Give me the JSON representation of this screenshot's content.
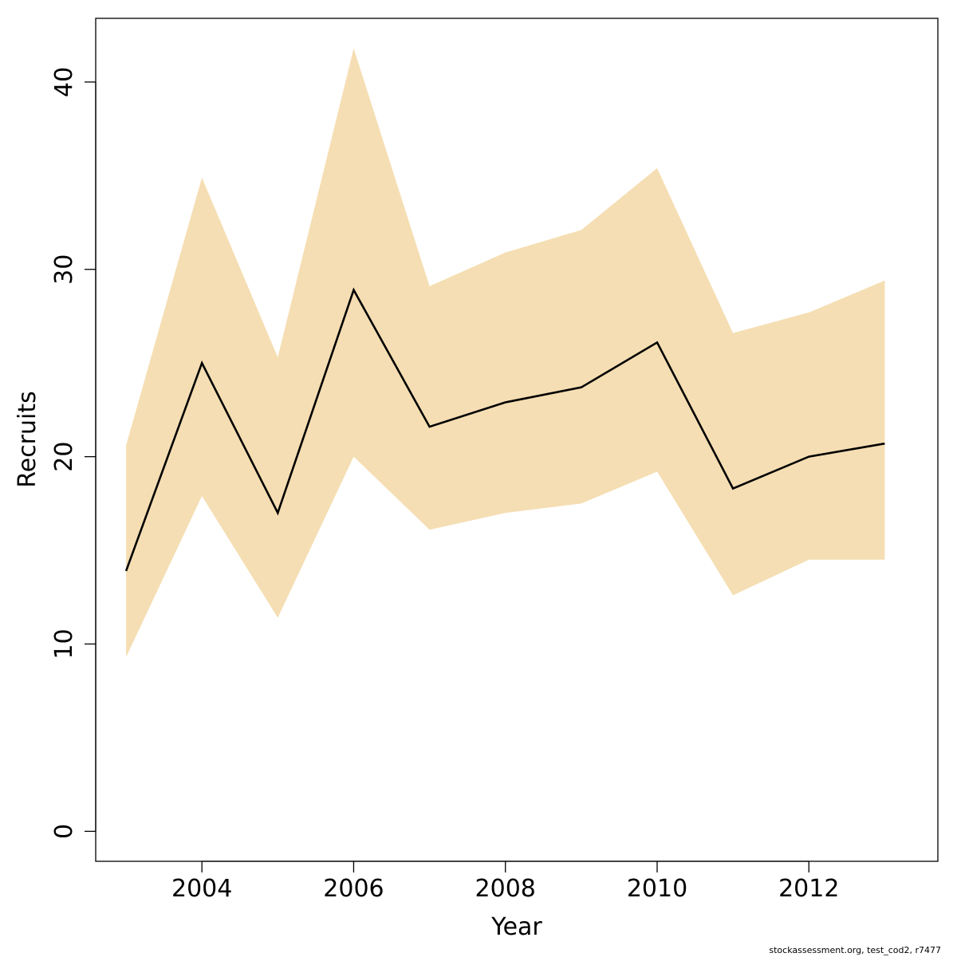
{
  "chart_data": {
    "type": "area",
    "title": "",
    "xlabel": "Year",
    "ylabel": "Recruits",
    "x": [
      2003,
      2004,
      2005,
      2006,
      2007,
      2008,
      2009,
      2010,
      2011,
      2012,
      2013
    ],
    "series": [
      {
        "values": [
          13.9,
          25.0,
          17.0,
          28.9,
          21.6,
          22.9,
          23.7,
          26.1,
          18.3,
          20.0,
          20.7
        ],
        "color": "#000000"
      }
    ],
    "band": {
      "lower": [
        9.3,
        17.9,
        11.4,
        20.0,
        16.1,
        17.0,
        17.5,
        19.2,
        12.6,
        14.5,
        14.5
      ],
      "upper": [
        20.6,
        34.9,
        25.3,
        41.8,
        29.1,
        30.9,
        32.1,
        35.4,
        26.6,
        27.7,
        29.4
      ],
      "color": "#f5deb3"
    },
    "xlim": [
      2002.6,
      2013.7
    ],
    "ylim": [
      -1.6,
      43.4
    ],
    "x_ticks": [
      "2004",
      "2006",
      "2008",
      "2010",
      "2012"
    ],
    "y_ticks": [
      "0",
      "10",
      "20",
      "30",
      "40"
    ],
    "grid": false,
    "legend": "none"
  },
  "footnote": "stockassessment.org, test_cod2, r7477"
}
